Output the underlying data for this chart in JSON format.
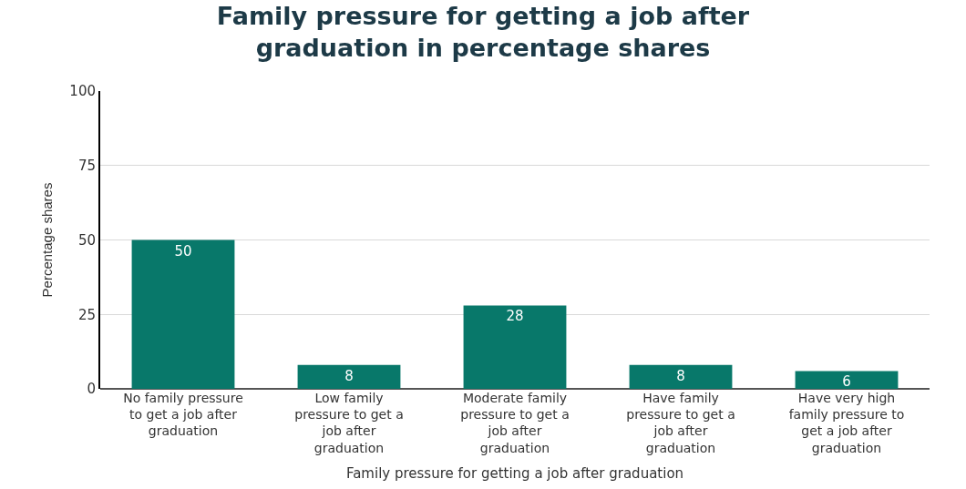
{
  "chart_data": {
    "type": "bar",
    "title": "Family pressure for getting a job after graduation in percentage shares",
    "xlabel": "Family pressure for getting a job after graduation",
    "ylabel": "Percentage shares",
    "categories": [
      "No family pressure to get a job after graduation",
      "Low family pressure to get a job after graduation",
      "Moderate family pressure to get a job after graduation",
      "Have family pressure to get a job after graduation",
      "Have very high family pressure to get a job after graduation"
    ],
    "values": [
      50,
      8,
      28,
      8,
      6
    ],
    "color": "#08786a",
    "ylim": [
      0,
      100
    ],
    "yticks": [
      0,
      25,
      50,
      75,
      100
    ],
    "grid": "y",
    "data_labels": true
  }
}
